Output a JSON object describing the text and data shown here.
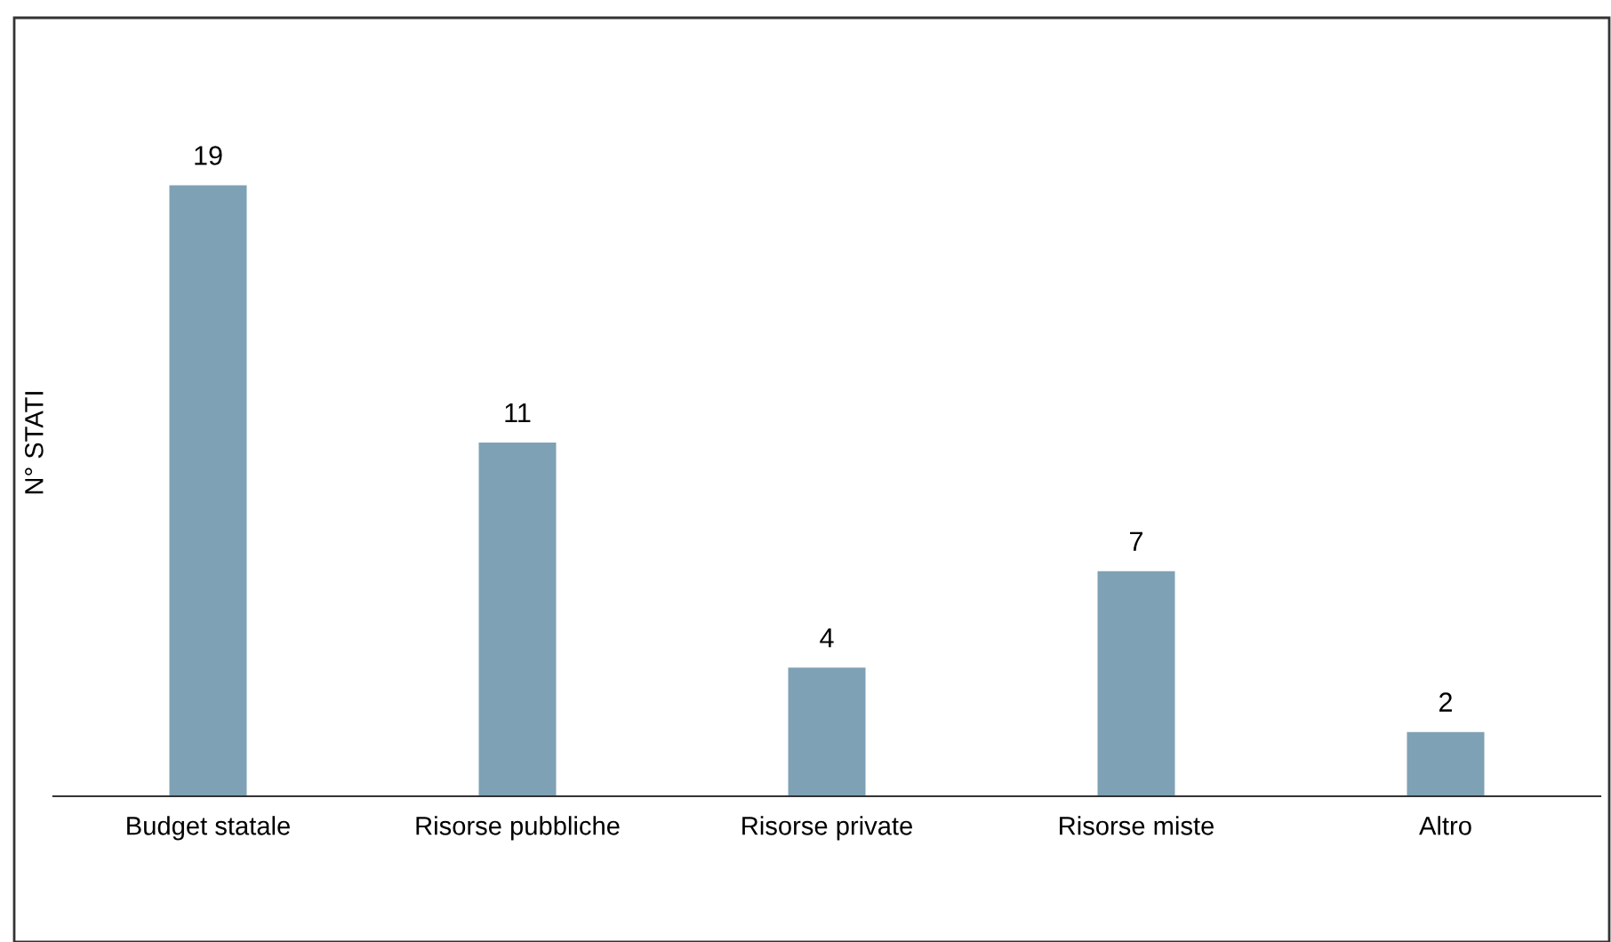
{
  "chart_data": {
    "type": "bar",
    "ylabel": "N° STATI",
    "categories": [
      "Budget statale",
      "Risorse pubbliche",
      "Risorse private",
      "Risorse miste",
      "Altro"
    ],
    "values": [
      19,
      11,
      4,
      7,
      2
    ],
    "color": "#7fa1b5",
    "data_labels": true,
    "grid": false,
    "legend": false
  }
}
